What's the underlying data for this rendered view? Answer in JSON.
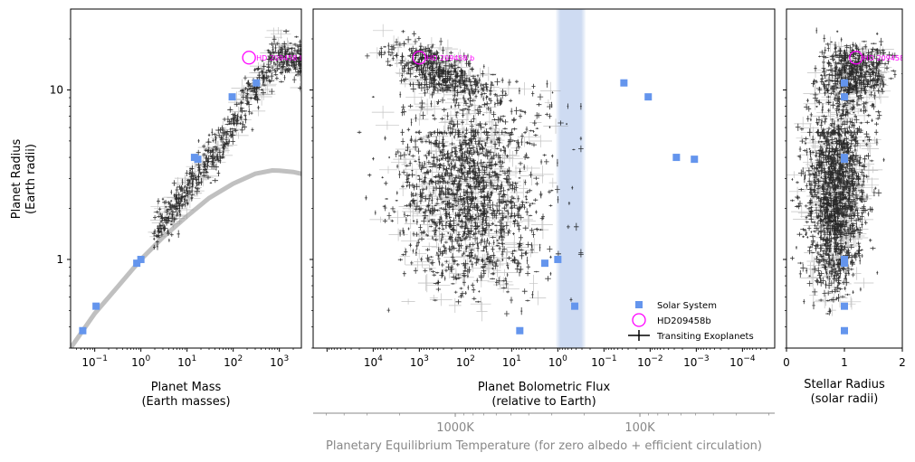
{
  "colors": {
    "solar_system": "#6495ed",
    "highlight": "#ff00ff",
    "exoplanets": "#000000",
    "mass_radius_curve": "#c0c0c0",
    "habitable_band": "#c8d7f0",
    "temperature_axis": "#888888"
  },
  "chart_data": [
    {
      "id": "mass-radius",
      "type": "scatter",
      "xscale": "log",
      "yscale": "log",
      "xlim": [
        0.03,
        3000
      ],
      "ylim": [
        0.3,
        30
      ],
      "xlabel": [
        "Planet Mass",
        "(Earth masses)"
      ],
      "ylabel": [
        "Planet Radius",
        "(Earth radii)"
      ],
      "xticks": [
        {
          "v": 0.1,
          "base": "10",
          "exp": "−1"
        },
        {
          "v": 1,
          "base": "10",
          "exp": "0"
        },
        {
          "v": 10,
          "base": "10",
          "exp": "1"
        },
        {
          "v": 100,
          "base": "10",
          "exp": "2"
        },
        {
          "v": 1000,
          "base": "10",
          "exp": "3"
        }
      ],
      "yticks": [
        {
          "v": 1,
          "label": "1"
        },
        {
          "v": 10,
          "label": "10"
        }
      ],
      "series": [
        {
          "name": "Solar System",
          "kind": "solar",
          "x": [
            0.055,
            0.107,
            0.815,
            1.0,
            14.5,
            17.1,
            95.2,
            317.8
          ],
          "y": [
            0.38,
            0.53,
            0.95,
            1.0,
            4.0,
            3.9,
            9.1,
            11.0
          ]
        },
        {
          "name": "HD209458b",
          "kind": "highlight",
          "x": [
            220
          ],
          "y": [
            15.5
          ],
          "label": "HD 209458 b"
        }
      ],
      "curve": {
        "x": [
          0.03,
          0.1,
          0.3,
          1,
          3,
          10,
          30,
          100,
          300,
          700,
          1000,
          2000,
          3000
        ],
        "y": [
          0.3,
          0.48,
          0.68,
          1.0,
          1.35,
          1.8,
          2.3,
          2.8,
          3.2,
          3.35,
          3.34,
          3.28,
          3.2
        ]
      }
    },
    {
      "id": "flux-radius",
      "type": "scatter",
      "xscale": "log",
      "yscale": "log",
      "x_reversed": true,
      "xlim": [
        200000,
        2e-05
      ],
      "ylim": [
        0.3,
        30
      ],
      "xlabel": [
        "Planet Bolometric Flux",
        "(relative to Earth)"
      ],
      "xticks": [
        {
          "v": 10000,
          "base": "10",
          "exp": "4"
        },
        {
          "v": 1000,
          "base": "10",
          "exp": "3"
        },
        {
          "v": 100,
          "base": "10",
          "exp": "2"
        },
        {
          "v": 10,
          "base": "10",
          "exp": "1"
        },
        {
          "v": 1,
          "base": "10",
          "exp": "0"
        },
        {
          "v": 0.1,
          "base": "10",
          "exp": "−1"
        },
        {
          "v": 0.01,
          "base": "10",
          "exp": "−2"
        },
        {
          "v": 0.001,
          "base": "10",
          "exp": "−3"
        },
        {
          "v": 0.0001,
          "base": "10",
          "exp": "−4"
        }
      ],
      "habitable_zone": [
        1.1,
        0.25
      ],
      "series": [
        {
          "name": "Solar System",
          "kind": "solar",
          "x": [
            6.67,
            1.91,
            1.0,
            0.43,
            0.037,
            0.011,
            0.0027,
            0.0011
          ],
          "y": [
            0.38,
            0.95,
            1.0,
            0.53,
            11.0,
            9.1,
            4.0,
            3.9
          ]
        },
        {
          "name": "HD209458b",
          "kind": "highlight",
          "x": [
            1000
          ],
          "y": [
            15.5
          ],
          "label": "HD 209458 b"
        },
        {
          "name": "Transiting Exoplanets",
          "kind": "exoplanets"
        }
      ],
      "legend": {
        "position": "lower-right",
        "entries": [
          {
            "label": "Solar System",
            "kind": "solar"
          },
          {
            "label": "HD209458b",
            "kind": "highlight"
          },
          {
            "label": "Transiting Exoplanets",
            "kind": "exoplanets"
          }
        ]
      },
      "secondary_xaxis": {
        "label": "Planetary Equilibrium Temperature (for zero albedo + efficient circulation)",
        "ticks": [
          {
            "v": 1000,
            "label": "1000K"
          },
          {
            "v": 100,
            "label": "100K"
          }
        ]
      }
    },
    {
      "id": "stellar-radius",
      "type": "scatter",
      "xscale": "linear",
      "yscale": "log",
      "xlim": [
        0,
        2
      ],
      "ylim": [
        0.3,
        30
      ],
      "xlabel": [
        "Stellar Radius",
        "(solar radii)"
      ],
      "xticks": [
        {
          "v": 0,
          "label": "0"
        },
        {
          "v": 1,
          "label": "1"
        },
        {
          "v": 2,
          "label": "2"
        }
      ],
      "series": [
        {
          "name": "Solar System",
          "kind": "solar",
          "x": [
            1,
            1,
            1,
            1,
            1,
            1,
            1,
            1
          ],
          "y": [
            0.38,
            0.95,
            1.0,
            0.53,
            11.0,
            9.1,
            4.0,
            3.9
          ]
        },
        {
          "name": "HD209458b",
          "kind": "highlight",
          "x": [
            1.2
          ],
          "y": [
            15.5
          ],
          "label": "HD 209458 b"
        }
      ]
    }
  ]
}
